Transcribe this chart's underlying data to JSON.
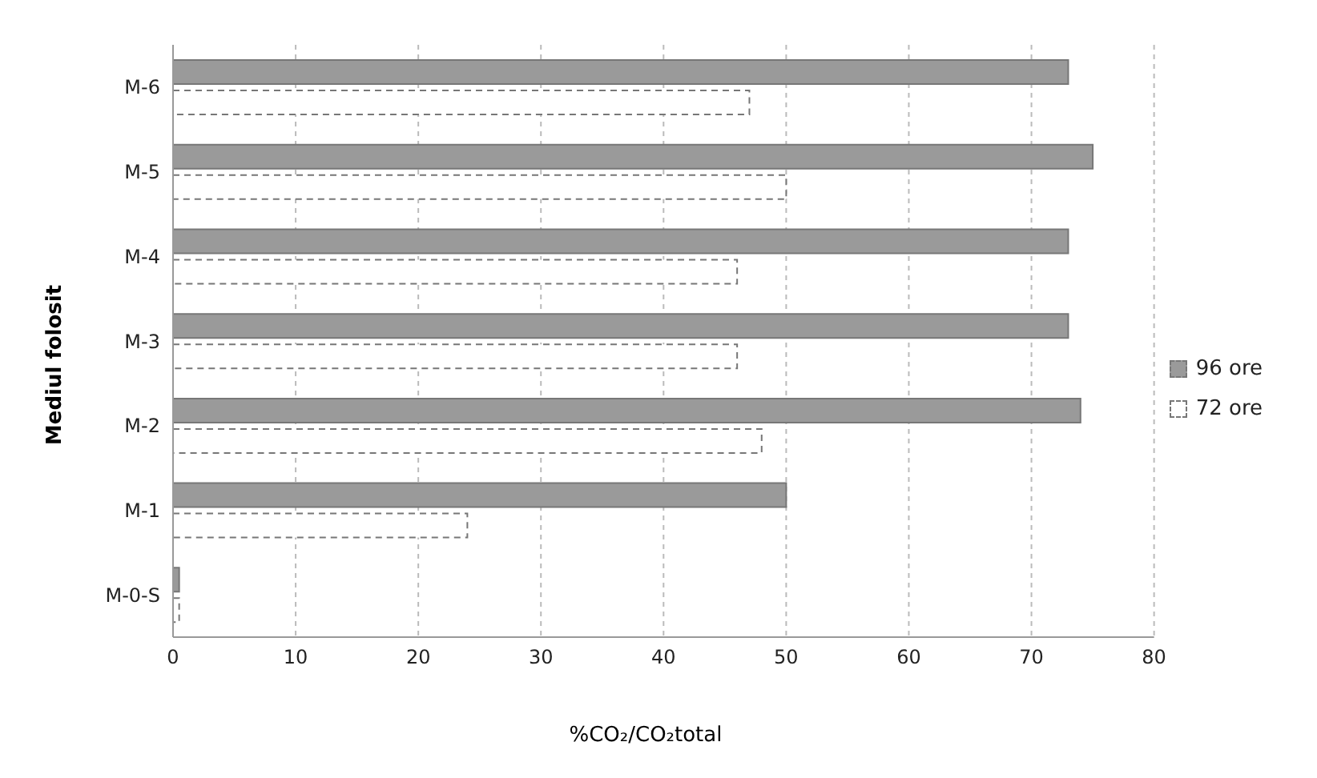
{
  "chart_data": {
    "type": "bar",
    "orientation": "horizontal",
    "xlabel": "%CO₂/CO₂total",
    "ylabel": "Mediul folosit",
    "categories": [
      "M-6",
      "M-5",
      "M-4",
      "M-3",
      "M-2",
      "M-1",
      "M-0-S"
    ],
    "series": [
      {
        "name": "96 ore",
        "color": "#9a9a9a",
        "values": [
          73,
          75,
          73,
          73,
          74,
          50,
          0.5
        ]
      },
      {
        "name": "72 ore",
        "color": "#ffffff",
        "values": [
          47,
          50,
          46,
          46,
          48,
          24,
          0.5
        ]
      }
    ],
    "xlim": [
      0,
      80
    ],
    "xticks": [
      0,
      10,
      20,
      30,
      40,
      50,
      60,
      70,
      80
    ],
    "grid": "x",
    "legend": "right"
  }
}
